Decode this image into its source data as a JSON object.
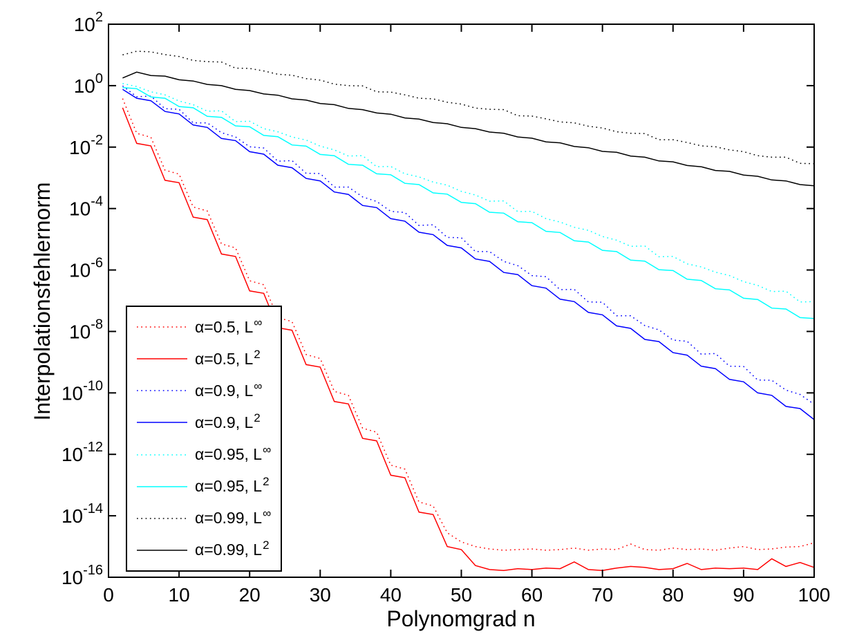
{
  "figure": {
    "background": "#ffffff",
    "frame_color": "#000000",
    "text_color": "#000000"
  },
  "chart_data": {
    "type": "line",
    "title": "",
    "xlabel": "Polynomgrad n",
    "ylabel": "Interpolationsfehlernorm",
    "y_scale": "log10",
    "grid": false,
    "legend_position": "lower-left",
    "x_range": [
      0,
      100
    ],
    "y_exponent_range": [
      -16,
      2
    ],
    "x_ticks": [
      0,
      10,
      20,
      30,
      40,
      50,
      60,
      70,
      80,
      90,
      100
    ],
    "y_tick_exponents": [
      2,
      0,
      -2,
      -4,
      -6,
      -8,
      -10,
      -12,
      -14,
      -16
    ],
    "x": [
      2,
      4,
      6,
      8,
      10,
      12,
      14,
      16,
      18,
      20,
      22,
      24,
      26,
      28,
      30,
      32,
      34,
      36,
      38,
      40,
      42,
      44,
      46,
      48,
      50,
      52,
      54,
      56,
      58,
      60,
      62,
      64,
      66,
      68,
      70,
      72,
      74,
      76,
      78,
      80,
      82,
      84,
      86,
      88,
      90,
      92,
      94,
      96,
      98,
      100
    ],
    "series": [
      {
        "name": "α=0.5, L∞",
        "label_prefix": "α=0.5, L",
        "label_sup": "∞",
        "color": "#ff0000",
        "linestyle": "dotted",
        "log10_values": [
          -0.42,
          -1.55,
          -1.68,
          -2.75,
          -2.88,
          -3.95,
          -4.08,
          -5.15,
          -5.28,
          -6.35,
          -6.48,
          -7.55,
          -7.68,
          -8.75,
          -8.88,
          -9.95,
          -10.08,
          -11.15,
          -11.28,
          -12.35,
          -12.48,
          -13.55,
          -13.68,
          -14.55,
          -14.85,
          -15.0,
          -15.08,
          -15.12,
          -15.1,
          -15.08,
          -15.12,
          -15.1,
          -15.05,
          -15.12,
          -15.08,
          -15.1,
          -14.92,
          -15.1,
          -15.12,
          -15.05,
          -15.1,
          -15.08,
          -15.12,
          -15.05,
          -15.0,
          -15.1,
          -15.08,
          -15.02,
          -15.0,
          -14.88
        ]
      },
      {
        "name": "α=0.5, L2",
        "label_prefix": "α=0.5, L",
        "label_sup": "2",
        "color": "#ff0000",
        "linestyle": "solid",
        "log10_values": [
          -0.72,
          -1.88,
          -1.96,
          -3.08,
          -3.16,
          -4.28,
          -4.36,
          -5.48,
          -5.56,
          -6.68,
          -6.76,
          -7.88,
          -7.96,
          -9.08,
          -9.16,
          -10.28,
          -10.36,
          -11.48,
          -11.56,
          -12.68,
          -12.76,
          -13.88,
          -13.96,
          -15.0,
          -15.1,
          -15.62,
          -15.75,
          -15.78,
          -15.72,
          -15.75,
          -15.7,
          -15.72,
          -15.5,
          -15.75,
          -15.78,
          -15.7,
          -15.65,
          -15.68,
          -15.75,
          -15.72,
          -15.55,
          -15.75,
          -15.7,
          -15.72,
          -15.7,
          -15.75,
          -15.4,
          -15.65,
          -15.52,
          -15.68
        ]
      },
      {
        "name": "α=0.9, L∞",
        "label_prefix": "α=0.9, L",
        "label_sup": "∞",
        "color": "#0000ff",
        "linestyle": "dotted",
        "log10_values": [
          -0.01,
          -0.36,
          -0.34,
          -0.75,
          -0.77,
          -1.21,
          -1.21,
          -1.53,
          -1.67,
          -1.99,
          -2.03,
          -2.46,
          -2.44,
          -2.85,
          -2.86,
          -3.3,
          -3.3,
          -3.62,
          -3.77,
          -4.09,
          -4.13,
          -4.55,
          -4.53,
          -4.94,
          -4.95,
          -5.4,
          -5.4,
          -5.72,
          -5.86,
          -6.18,
          -6.22,
          -6.64,
          -6.63,
          -7.04,
          -7.05,
          -7.49,
          -7.49,
          -7.81,
          -7.95,
          -8.28,
          -8.32,
          -8.74,
          -8.72,
          -9.13,
          -9.14,
          -9.58,
          -9.59,
          -9.91,
          -10.05,
          -10.37
        ]
      },
      {
        "name": "α=0.9, L2",
        "label_prefix": "α=0.9, L",
        "label_sup": "2",
        "color": "#0000ff",
        "linestyle": "solid",
        "log10_values": [
          -0.12,
          -0.41,
          -0.49,
          -0.84,
          -0.92,
          -1.28,
          -1.36,
          -1.72,
          -1.79,
          -2.15,
          -2.23,
          -2.59,
          -2.67,
          -3.02,
          -3.1,
          -3.46,
          -3.54,
          -3.9,
          -3.97,
          -4.33,
          -4.41,
          -4.77,
          -4.85,
          -5.2,
          -5.28,
          -5.64,
          -5.72,
          -6.08,
          -6.15,
          -6.51,
          -6.59,
          -6.95,
          -7.03,
          -7.38,
          -7.46,
          -7.82,
          -7.9,
          -8.26,
          -8.33,
          -8.69,
          -8.77,
          -9.13,
          -9.21,
          -9.56,
          -9.64,
          -10.0,
          -10.08,
          -10.44,
          -10.51,
          -10.87
        ]
      },
      {
        "name": "α=0.95, L∞",
        "label_prefix": "α=0.95, L",
        "label_sup": "∞",
        "color": "#00ffff",
        "linestyle": "dotted",
        "log10_values": [
          0.07,
          -0.03,
          -0.2,
          -0.3,
          -0.5,
          -0.62,
          -0.83,
          -0.82,
          -1.17,
          -1.16,
          -1.4,
          -1.5,
          -1.67,
          -1.77,
          -1.97,
          -2.09,
          -2.29,
          -2.28,
          -2.64,
          -2.63,
          -2.87,
          -2.97,
          -3.14,
          -3.24,
          -3.44,
          -3.56,
          -3.76,
          -3.75,
          -4.1,
          -4.09,
          -4.33,
          -4.44,
          -4.61,
          -4.71,
          -4.91,
          -5.03,
          -5.23,
          -5.22,
          -5.57,
          -5.56,
          -5.8,
          -5.9,
          -6.07,
          -6.18,
          -6.38,
          -6.5,
          -6.7,
          -6.69,
          -7.04,
          -7.03
        ]
      },
      {
        "name": "α=0.95, L2",
        "label_prefix": "α=0.95, L",
        "label_sup": "2",
        "color": "#00ffff",
        "linestyle": "solid",
        "log10_values": [
          -0.06,
          -0.1,
          -0.37,
          -0.41,
          -0.68,
          -0.72,
          -1.0,
          -1.03,
          -1.31,
          -1.34,
          -1.62,
          -1.66,
          -1.93,
          -1.97,
          -2.24,
          -2.28,
          -2.56,
          -2.59,
          -2.87,
          -2.9,
          -3.18,
          -3.22,
          -3.49,
          -3.53,
          -3.8,
          -3.84,
          -4.12,
          -4.15,
          -4.43,
          -4.46,
          -4.74,
          -4.78,
          -5.05,
          -5.09,
          -5.36,
          -5.4,
          -5.68,
          -5.71,
          -5.99,
          -6.02,
          -6.3,
          -6.34,
          -6.61,
          -6.65,
          -6.92,
          -6.96,
          -7.24,
          -7.27,
          -7.55,
          -7.58
        ]
      },
      {
        "name": "α=0.99, L∞",
        "label_prefix": "α=0.99, L",
        "label_sup": "∞",
        "color": "#000000",
        "linestyle": "dotted",
        "log10_values": [
          1.0,
          1.12,
          1.1,
          1.01,
          0.95,
          0.82,
          0.78,
          0.77,
          0.57,
          0.56,
          0.48,
          0.37,
          0.34,
          0.23,
          0.18,
          0.05,
          0.0,
          -0.01,
          -0.2,
          -0.21,
          -0.3,
          -0.41,
          -0.43,
          -0.54,
          -0.6,
          -0.73,
          -0.77,
          -0.78,
          -0.98,
          -0.99,
          -1.08,
          -1.18,
          -1.21,
          -1.32,
          -1.38,
          -1.5,
          -1.55,
          -1.56,
          -1.76,
          -1.76,
          -1.85,
          -1.96,
          -1.99,
          -2.09,
          -2.15,
          -2.28,
          -2.33,
          -2.33,
          -2.53,
          -2.54
        ]
      },
      {
        "name": "α=0.99, L2",
        "label_prefix": "α=0.99, L",
        "label_sup": "2",
        "color": "#000000",
        "linestyle": "solid",
        "log10_values": [
          0.25,
          0.44,
          0.33,
          0.31,
          0.19,
          0.15,
          0.04,
          0.0,
          -0.12,
          -0.16,
          -0.27,
          -0.31,
          -0.43,
          -0.47,
          -0.58,
          -0.62,
          -0.74,
          -0.78,
          -0.89,
          -0.93,
          -1.05,
          -1.09,
          -1.2,
          -1.24,
          -1.36,
          -1.4,
          -1.51,
          -1.55,
          -1.67,
          -1.71,
          -1.83,
          -1.86,
          -1.98,
          -2.02,
          -2.14,
          -2.17,
          -2.29,
          -2.33,
          -2.45,
          -2.48,
          -2.6,
          -2.64,
          -2.76,
          -2.79,
          -2.91,
          -2.95,
          -3.07,
          -3.1,
          -3.22,
          -3.26
        ]
      }
    ]
  }
}
